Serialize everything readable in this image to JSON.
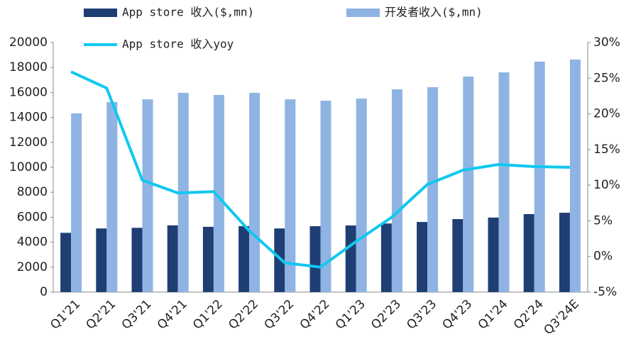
{
  "chart_data": {
    "type": "bar-line",
    "categories": [
      "Q1'21",
      "Q2'21",
      "Q3'21",
      "Q4'21",
      "Q1'22",
      "Q2'22",
      "Q3'22",
      "Q4'22",
      "Q1'23",
      "Q2'23",
      "Q3'23",
      "Q4'23",
      "Q1'24",
      "Q2'24",
      "Q3'24E"
    ],
    "series": [
      {
        "name": "App store 收入($,mn)",
        "type": "bar",
        "color": "#1f3f74",
        "values": [
          4750,
          5100,
          5150,
          5350,
          5230,
          5280,
          5100,
          5280,
          5340,
          5500,
          5620,
          5850,
          5970,
          6250,
          6360
        ]
      },
      {
        "name": "开发者收入($,mn)",
        "type": "bar",
        "color": "#8fb4e3",
        "values": [
          14320,
          15230,
          15450,
          15970,
          15800,
          15970,
          15450,
          15340,
          15510,
          16250,
          16420,
          17270,
          17610,
          18470,
          18640
        ]
      },
      {
        "name": "App store 收入yoy",
        "type": "line",
        "axis": "y2",
        "color": "#10c8f0",
        "values": [
          25.9,
          23.6,
          10.7,
          8.9,
          9.1,
          3.6,
          -0.9,
          -1.5,
          2.1,
          5.5,
          10.1,
          12.1,
          12.9,
          12.6,
          12.5
        ]
      }
    ],
    "ylim": [
      0,
      20000
    ],
    "yticks": [
      0,
      2000,
      4000,
      6000,
      8000,
      10000,
      12000,
      14000,
      16000,
      18000,
      20000
    ],
    "y2lim": [
      -5,
      30
    ],
    "y2ticks": [
      {
        "value": -5,
        "label": "-5%"
      },
      {
        "value": 0,
        "label": "0%"
      },
      {
        "value": 5,
        "label": "5%"
      },
      {
        "value": 10,
        "label": "10%"
      },
      {
        "value": 15,
        "label": "15%"
      },
      {
        "value": 20,
        "label": "20%"
      },
      {
        "value": 25,
        "label": "25%"
      },
      {
        "value": 30,
        "label": "30%"
      }
    ],
    "grid": false
  }
}
